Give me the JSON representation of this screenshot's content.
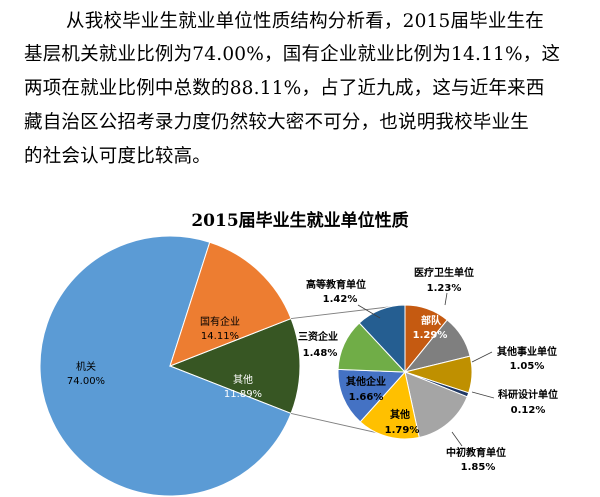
{
  "paragraph": {
    "lines": [
      "从我校毕业生就业单位性质结构分析看，2015届毕业生在",
      "基层机关就业比例为74.00%，国有企业就业比例为14.11%，这",
      "两项在就业比例中总数的88.11%，占了近九成，这与近年来西",
      "藏自治区公招考录力度仍然较大密不可分，也说明我校毕业生",
      "的社会认可度比较高。"
    ]
  },
  "chart_data": {
    "type": "pie",
    "title": "2015届毕业生就业单位性质",
    "main_pie": [
      {
        "name": "机关",
        "value": 74.0,
        "label": "74.00%",
        "color": "#5B9BD5"
      },
      {
        "name": "国有企业",
        "value": 14.11,
        "label": "14.11%",
        "color": "#ED7D31"
      },
      {
        "name": "其他",
        "value": 11.89,
        "label": "11.89%",
        "color": "#375623"
      }
    ],
    "sub_pie": [
      {
        "name": "部队",
        "value": 1.29,
        "label": "1.29%",
        "color": "#C55A11"
      },
      {
        "name": "医疗卫生单位",
        "value": 1.23,
        "label": "1.23%",
        "color": "#7F7F7F"
      },
      {
        "name": "其他事业单位",
        "value": 1.05,
        "label": "1.05%",
        "color": "#BF9000"
      },
      {
        "name": "科研设计单位",
        "value": 0.12,
        "label": "0.12%",
        "color": "#203864"
      },
      {
        "name": "中初教育单位",
        "value": 1.85,
        "label": "1.85%",
        "color": "#A5A5A5"
      },
      {
        "name": "其他",
        "value": 1.79,
        "label": "1.79%",
        "color": "#FFC000"
      },
      {
        "name": "其他企业",
        "value": 1.66,
        "label": "1.66%",
        "color": "#4472C4"
      },
      {
        "name": "三资企业",
        "value": 1.48,
        "label": "1.48%",
        "color": "#70AD47"
      },
      {
        "name": "高等教育单位",
        "value": 1.42,
        "label": "1.42%",
        "color": "#255E91"
      }
    ]
  }
}
